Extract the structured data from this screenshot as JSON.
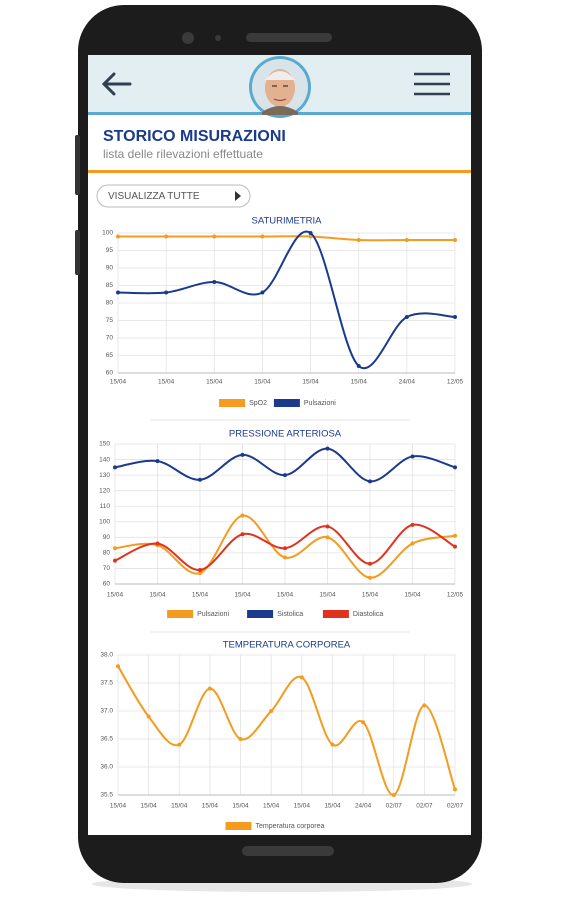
{
  "header": {
    "title": "STORICO MISURAZIONI",
    "subtitle": "lista delle rilevazioni effettuate"
  },
  "button": {
    "label": "VISUALIZZA TUTTE"
  },
  "chart_data": [
    {
      "type": "line",
      "title": "SATURIMETRIA",
      "categories": [
        "15/04",
        "15/04",
        "15/04",
        "15/04",
        "15/04",
        "15/04",
        "24/04",
        "12/05"
      ],
      "series": [
        {
          "name": "SpO2",
          "color": "#f39c1f",
          "values": [
            99,
            99,
            99,
            99,
            99,
            98,
            98,
            98
          ]
        },
        {
          "name": "Pulsazioni",
          "color": "#1b3a8c",
          "values": [
            83,
            83,
            86,
            83,
            100,
            62,
            76,
            76
          ]
        }
      ],
      "ylim": [
        60,
        100
      ],
      "yticks": [
        60,
        65,
        70,
        75,
        80,
        85,
        90,
        95,
        100
      ],
      "grid": true
    },
    {
      "type": "line",
      "title": "PRESSIONE ARTERIOSA",
      "categories": [
        "15/04",
        "15/04",
        "15/04",
        "15/04",
        "15/04",
        "15/04",
        "15/04",
        "15/04",
        "12/05"
      ],
      "series": [
        {
          "name": "Pulsazioni",
          "color": "#f39c1f",
          "values": [
            83,
            85,
            67,
            104,
            77,
            90,
            64,
            86,
            91
          ]
        },
        {
          "name": "Sistolica",
          "color": "#1b3a8c",
          "values": [
            135,
            139,
            127,
            143,
            130,
            147,
            126,
            142,
            135
          ]
        },
        {
          "name": "Diastolica",
          "color": "#e0331f",
          "values": [
            75,
            86,
            69,
            92,
            83,
            97,
            73,
            98,
            84
          ]
        }
      ],
      "ylim": [
        60,
        150
      ],
      "yticks": [
        60,
        70,
        80,
        90,
        100,
        110,
        120,
        130,
        140,
        150
      ],
      "grid": true
    },
    {
      "type": "line",
      "title": "TEMPERATURA CORPOREA",
      "categories": [
        "15/04",
        "15/04",
        "15/04",
        "15/04",
        "15/04",
        "15/04",
        "15/04",
        "15/04",
        "24/04",
        "02/07",
        "02/07",
        "02/07"
      ],
      "series": [
        {
          "name": "Temperatura corporea",
          "color": "#f39c1f",
          "values": [
            37.8,
            36.9,
            36.4,
            37.4,
            36.5,
            37.0,
            37.6,
            36.4,
            36.8,
            35.5,
            37.1,
            35.6
          ]
        }
      ],
      "ylim": [
        35.5,
        38.0
      ],
      "yticks": [
        35.5,
        {
          "value": 36,
          "label": "36.0"
        },
        36.5,
        {
          "value": 37,
          "label": "37.0"
        },
        37.5,
        {
          "value": 38,
          "label": "38.0"
        }
      ],
      "grid": true
    }
  ]
}
